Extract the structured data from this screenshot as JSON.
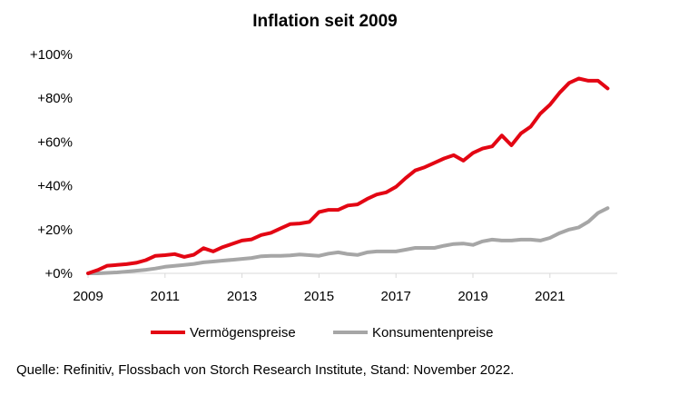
{
  "chart_data": {
    "type": "line",
    "title": "Inflation seit 2009",
    "xlabel": "",
    "ylabel": "",
    "xlim": [
      2009,
      2022.75
    ],
    "ylim": [
      0,
      100
    ],
    "y_ticks": [
      0,
      20,
      40,
      60,
      80,
      100
    ],
    "y_tick_labels": [
      "+0%",
      "+20%",
      "+40%",
      "+60%",
      "+80%",
      "+100%"
    ],
    "x_ticks": [
      2009,
      2011,
      2013,
      2015,
      2017,
      2019,
      2021
    ],
    "x_tick_labels": [
      "2009",
      "2011",
      "2013",
      "2015",
      "2017",
      "2019",
      "2021"
    ],
    "grid": false,
    "legend_position": "bottom",
    "series": [
      {
        "name": "Vermögenspreise",
        "color": "#e30613",
        "x": [
          2009.0,
          2009.25,
          2009.5,
          2009.75,
          2010.0,
          2010.25,
          2010.5,
          2010.75,
          2011.0,
          2011.25,
          2011.5,
          2011.75,
          2012.0,
          2012.25,
          2012.5,
          2012.75,
          2013.0,
          2013.25,
          2013.5,
          2013.75,
          2014.0,
          2014.25,
          2014.5,
          2014.75,
          2015.0,
          2015.25,
          2015.5,
          2015.75,
          2016.0,
          2016.25,
          2016.5,
          2016.75,
          2017.0,
          2017.25,
          2017.5,
          2017.75,
          2018.0,
          2018.25,
          2018.5,
          2018.75,
          2019.0,
          2019.25,
          2019.5,
          2019.75,
          2020.0,
          2020.25,
          2020.5,
          2020.75,
          2021.0,
          2021.25,
          2021.5,
          2021.75,
          2022.0,
          2022.25,
          2022.5
        ],
        "values": [
          0,
          1.5,
          3.5,
          3.8,
          4.2,
          4.8,
          6,
          8,
          8.3,
          8.8,
          7.5,
          8.5,
          11.5,
          10,
          12,
          13.5,
          15,
          15.5,
          17.5,
          18.5,
          20.5,
          22.5,
          22.8,
          23.5,
          28,
          29,
          29,
          31,
          31.5,
          34,
          36,
          37,
          39.5,
          43.5,
          47,
          48.5,
          50.5,
          52.5,
          54,
          51.5,
          55,
          57,
          58,
          63,
          58.5,
          64,
          67,
          73,
          77,
          82.5,
          87,
          89,
          88,
          88,
          84.5
        ]
      },
      {
        "name": "Konsumentenpreise",
        "color": "#a6a6a6",
        "x": [
          2009.0,
          2009.25,
          2009.5,
          2009.75,
          2010.0,
          2010.25,
          2010.5,
          2010.75,
          2011.0,
          2011.25,
          2011.5,
          2011.75,
          2012.0,
          2012.25,
          2012.5,
          2012.75,
          2013.0,
          2013.25,
          2013.5,
          2013.75,
          2014.0,
          2014.25,
          2014.5,
          2014.75,
          2015.0,
          2015.25,
          2015.5,
          2015.75,
          2016.0,
          2016.25,
          2016.5,
          2016.75,
          2017.0,
          2017.25,
          2017.5,
          2017.75,
          2018.0,
          2018.25,
          2018.5,
          2018.75,
          2019.0,
          2019.25,
          2019.5,
          2019.75,
          2020.0,
          2020.25,
          2020.5,
          2020.75,
          2021.0,
          2021.25,
          2021.5,
          2021.75,
          2022.0,
          2022.25,
          2022.5
        ],
        "values": [
          0,
          0,
          0.2,
          0.4,
          0.8,
          1.2,
          1.6,
          2.2,
          3,
          3.4,
          3.8,
          4.3,
          5,
          5.4,
          5.8,
          6.2,
          6.6,
          7,
          7.8,
          8,
          8,
          8.2,
          8.6,
          8.3,
          8,
          9,
          9.6,
          8.8,
          8.4,
          9.6,
          10,
          10,
          10,
          10.8,
          11.6,
          11.6,
          11.6,
          12.6,
          13.4,
          13.6,
          13,
          14.6,
          15.4,
          15,
          15,
          15.4,
          15.4,
          15,
          16.2,
          18.4,
          20,
          21,
          23.6,
          27.6,
          29.8
        ]
      }
    ]
  },
  "source_text": "Quelle: Refinitiv, Flossbach von Storch Research Institute, Stand: November 2022."
}
